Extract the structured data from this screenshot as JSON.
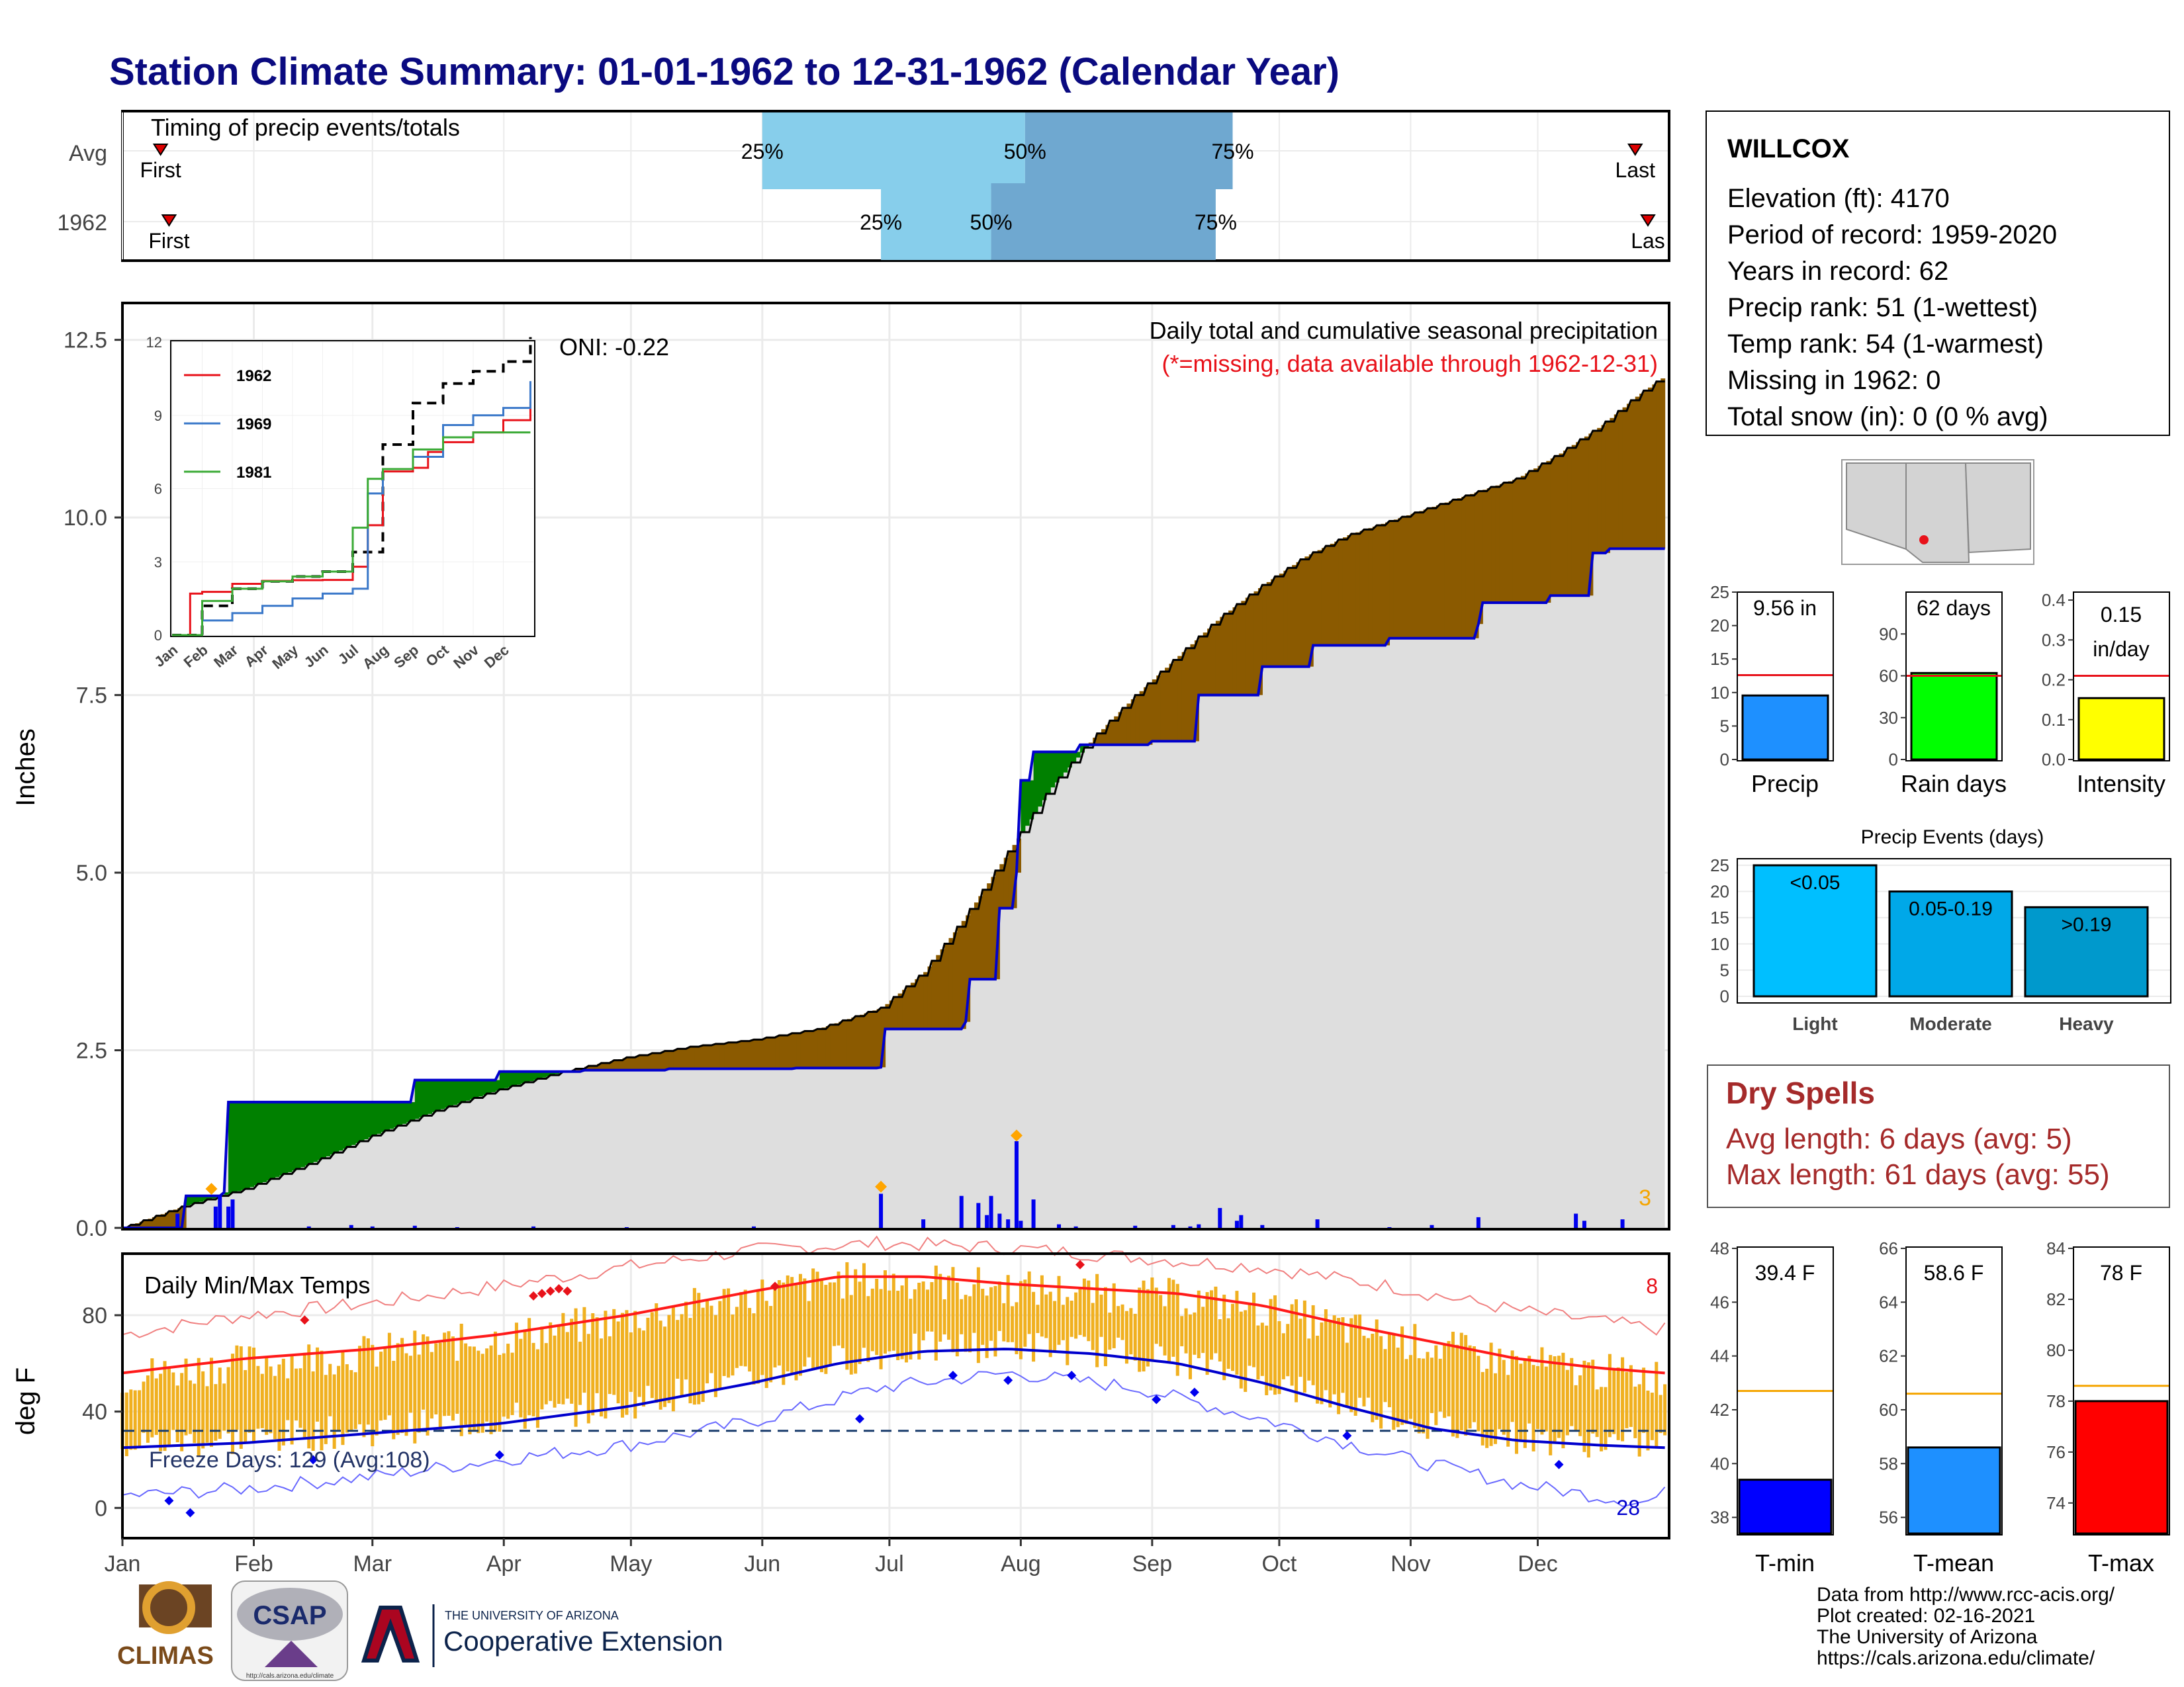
{
  "page": {
    "title": "Station Climate Summary: 01-01-1962 to 12-31-1962 (Calendar Year)"
  },
  "station": {
    "name": "WILLCOX",
    "lines": [
      "Elevation (ft): 4170",
      "Period of record: 1959-2020",
      "Years in record: 62",
      "Precip rank: 51 (1-wettest)",
      "Temp rank: 54 (1-warmest)",
      "Missing in 1962: 0",
      "Total snow (in): 0 (0 % avg)"
    ]
  },
  "timing": {
    "label": "Timing of precip events/totals",
    "rows": [
      {
        "name": "Avg",
        "first_doy": 10,
        "last_doy": 358,
        "p25_doy": 152,
        "p50_doy": 214,
        "p75_doy": 263,
        "first_label": "First",
        "last_label": "Last",
        "l25": "25%",
        "l50": "50%",
        "l75": "75%"
      },
      {
        "name": "1962",
        "first_doy": 12,
        "last_doy": 361,
        "p25_doy": 180,
        "p50_doy": 206,
        "p75_doy": 259,
        "first_label": "First",
        "last_label": "Las",
        "l25": "25%",
        "l50": "50%",
        "l75": "75%"
      }
    ]
  },
  "precip": {
    "ylabel": "Inches",
    "yticks": [
      "0.0",
      "2.5",
      "5.0",
      "7.5",
      "10.0",
      "12.5"
    ],
    "title": "Daily total and cumulative seasonal precipitation",
    "subtitle": "(*=missing, data available through 1962-12-31)",
    "oni": "ONI: -0.22",
    "count_label": "3",
    "colors": {
      "above": "#008000",
      "below": "#8b5a00",
      "area": "#dedede",
      "line": "#0000cd"
    },
    "chart_data": {
      "type": "area",
      "x_unit": "day of year",
      "ylim": [
        0,
        13
      ],
      "avg_cumulative": [
        [
          1,
          0
        ],
        [
          15,
          0.3
        ],
        [
          30,
          0.55
        ],
        [
          45,
          0.9
        ],
        [
          60,
          1.3
        ],
        [
          75,
          1.65
        ],
        [
          90,
          1.95
        ],
        [
          105,
          2.2
        ],
        [
          120,
          2.4
        ],
        [
          135,
          2.55
        ],
        [
          150,
          2.65
        ],
        [
          165,
          2.8
        ],
        [
          180,
          3.1
        ],
        [
          190,
          3.6
        ],
        [
          200,
          4.4
        ],
        [
          210,
          5.3
        ],
        [
          220,
          6.2
        ],
        [
          230,
          6.9
        ],
        [
          240,
          7.5
        ],
        [
          250,
          8.05
        ],
        [
          260,
          8.6
        ],
        [
          270,
          9.05
        ],
        [
          280,
          9.45
        ],
        [
          290,
          9.75
        ],
        [
          300,
          9.95
        ],
        [
          310,
          10.15
        ],
        [
          320,
          10.35
        ],
        [
          330,
          10.55
        ],
        [
          340,
          10.9
        ],
        [
          350,
          11.3
        ],
        [
          358,
          11.7
        ],
        [
          365,
          12.0
        ]
      ],
      "obs_cumulative": [
        [
          1,
          0
        ],
        [
          15,
          0
        ],
        [
          16,
          0.45
        ],
        [
          25,
          0.5
        ],
        [
          26,
          1.77
        ],
        [
          60,
          1.77
        ],
        [
          70,
          2.08
        ],
        [
          90,
          2.2
        ],
        [
          110,
          2.22
        ],
        [
          130,
          2.24
        ],
        [
          160,
          2.25
        ],
        [
          180,
          2.26
        ],
        [
          181,
          2.8
        ],
        [
          200,
          2.9
        ],
        [
          201,
          3.5
        ],
        [
          208,
          4.5
        ],
        [
          212,
          5.0
        ],
        [
          213,
          6.3
        ],
        [
          216,
          6.7
        ],
        [
          226,
          6.7
        ],
        [
          227,
          6.8
        ],
        [
          244,
          6.85
        ],
        [
          255,
          7.5
        ],
        [
          270,
          7.9
        ],
        [
          282,
          8.2
        ],
        [
          300,
          8.3
        ],
        [
          321,
          8.5
        ],
        [
          322,
          8.8
        ],
        [
          338,
          8.9
        ],
        [
          348,
          9.5
        ],
        [
          352,
          9.56
        ],
        [
          365,
          9.56
        ]
      ],
      "daily_bars": [
        [
          14,
          0.2
        ],
        [
          23,
          0.3
        ],
        [
          24,
          0.45
        ],
        [
          26,
          0.3
        ],
        [
          27,
          0.4
        ],
        [
          45,
          0.02
        ],
        [
          55,
          0.04
        ],
        [
          60,
          0.02
        ],
        [
          70,
          0.03
        ],
        [
          80,
          0.01
        ],
        [
          98,
          0.02
        ],
        [
          120,
          0.01
        ],
        [
          150,
          0.02
        ],
        [
          180,
          0.48
        ],
        [
          190,
          0.12
        ],
        [
          199,
          0.45
        ],
        [
          203,
          0.35
        ],
        [
          205,
          0.18
        ],
        [
          206,
          0.45
        ],
        [
          208,
          0.2
        ],
        [
          210,
          0.12
        ],
        [
          212,
          1.22
        ],
        [
          213,
          0.1
        ],
        [
          216,
          0.4
        ],
        [
          222,
          0.05
        ],
        [
          226,
          0.02
        ],
        [
          240,
          0.03
        ],
        [
          249,
          0.04
        ],
        [
          253,
          0.02
        ],
        [
          255,
          0.05
        ],
        [
          260,
          0.28
        ],
        [
          264,
          0.1
        ],
        [
          265,
          0.18
        ],
        [
          270,
          0.04
        ],
        [
          283,
          0.12
        ],
        [
          300,
          0.01
        ],
        [
          310,
          0.04
        ],
        [
          321,
          0.15
        ],
        [
          344,
          0.2
        ],
        [
          346,
          0.1
        ],
        [
          355,
          0.12
        ]
      ],
      "extreme_markers": [
        [
          22,
          0.55
        ],
        [
          180,
          0.58
        ],
        [
          212,
          1.3
        ]
      ]
    }
  },
  "inset": {
    "yticks": [
      "0",
      "3",
      "6",
      "9",
      "12"
    ],
    "months": [
      "Jan",
      "Feb",
      "Mar",
      "Apr",
      "May",
      "Jun",
      "Jul",
      "Aug",
      "Sep",
      "Oct",
      "Nov",
      "Dec"
    ],
    "legend": [
      {
        "name": "1962",
        "color": "#e8121a"
      },
      {
        "name": "1969",
        "color": "#3a78c9"
      },
      {
        "name": "1981",
        "color": "#3aaa35"
      }
    ],
    "chart_data": {
      "type": "line",
      "x_unit": "month index",
      "ylim": [
        0,
        12
      ],
      "avg": [
        [
          0,
          0
        ],
        [
          1,
          1.2
        ],
        [
          2,
          1.9
        ],
        [
          3,
          2.2
        ],
        [
          4,
          2.4
        ],
        [
          5,
          2.6
        ],
        [
          6,
          3.4
        ],
        [
          7,
          7.8
        ],
        [
          8,
          9.5
        ],
        [
          9,
          10.3
        ],
        [
          10,
          10.8
        ],
        [
          11,
          11.2
        ],
        [
          11.9,
          12.2
        ]
      ],
      "series": [
        {
          "name": "1962",
          "values": [
            [
              0,
              0
            ],
            [
              0.6,
              1.7
            ],
            [
              1.0,
              1.77
            ],
            [
              2.0,
              2.1
            ],
            [
              3.0,
              2.22
            ],
            [
              4,
              2.25
            ],
            [
              5,
              2.26
            ],
            [
              6,
              2.8
            ],
            [
              6.5,
              4.5
            ],
            [
              7,
              6.7
            ],
            [
              8,
              6.85
            ],
            [
              8.5,
              7.5
            ],
            [
              9,
              7.9
            ],
            [
              10,
              8.3
            ],
            [
              11,
              8.8
            ],
            [
              11.9,
              9.56
            ]
          ]
        },
        {
          "name": "1969",
          "values": [
            [
              0,
              0
            ],
            [
              1,
              0.6
            ],
            [
              2,
              0.9
            ],
            [
              3,
              1.2
            ],
            [
              4,
              1.5
            ],
            [
              5,
              1.7
            ],
            [
              6,
              1.9
            ],
            [
              6.5,
              5.8
            ],
            [
              7,
              6.8
            ],
            [
              8,
              7.3
            ],
            [
              9,
              8.6
            ],
            [
              10,
              9.0
            ],
            [
              11,
              9.3
            ],
            [
              11.9,
              10.4
            ]
          ]
        },
        {
          "name": "1981",
          "values": [
            [
              0,
              0
            ],
            [
              1,
              1.4
            ],
            [
              2,
              1.9
            ],
            [
              3,
              2.2
            ],
            [
              4,
              2.4
            ],
            [
              5,
              2.6
            ],
            [
              6,
              4.4
            ],
            [
              6.5,
              6.4
            ],
            [
              7,
              6.8
            ],
            [
              8,
              7.6
            ],
            [
              9,
              8.1
            ],
            [
              10,
              8.3
            ],
            [
              11,
              8.3
            ],
            [
              11.9,
              8.3
            ]
          ]
        }
      ]
    }
  },
  "bars": {
    "precip": {
      "box": "9.56 in",
      "label": "Precip",
      "yticks": [
        "0",
        "5",
        "10",
        "15",
        "20",
        "25"
      ],
      "ymax": 25,
      "value": 9.56,
      "avg": 12.6,
      "color": "#1e90ff"
    },
    "raindays": {
      "box": "62 days",
      "label": "Rain days",
      "yticks": [
        "0",
        "30",
        "60",
        "90"
      ],
      "ymax": 120,
      "value": 62,
      "avg": 60,
      "color": "#00ff00"
    },
    "intensity": {
      "box1": "0.15",
      "box2": "in/day",
      "label": "Intensity",
      "yticks": [
        "0.0",
        "0.1",
        "0.2",
        "0.3",
        "0.4"
      ],
      "ymax": 0.42,
      "value": 0.154,
      "avg": 0.21,
      "color": "#ffff00"
    }
  },
  "events": {
    "title": "Precip Events (days)",
    "yticks": [
      "0",
      "5",
      "10",
      "15",
      "20",
      "25"
    ],
    "chart_data": {
      "type": "bar",
      "categories": [
        "Light",
        "Moderate",
        "Heavy"
      ],
      "values": [
        25,
        20,
        17
      ],
      "labels": [
        "<0.05",
        "0.05-0.19",
        ">0.19"
      ],
      "colors": [
        "#00bfff",
        "#00a8e8",
        "#0099cc"
      ],
      "ylim": [
        0,
        26
      ]
    }
  },
  "dry": {
    "title": "Dry Spells",
    "line1": "Avg length: 6 days (avg: 5)",
    "line2": "Max length: 61 days (avg: 55)"
  },
  "temps": {
    "ylabel": "deg F",
    "label": "Daily Min/Max Temps",
    "yticks": [
      "0",
      "40",
      "80"
    ],
    "freeze_label": "Freeze Days: 129 (Avg:108)",
    "count_hot": "8",
    "count_cold": "28",
    "months": [
      "Jan",
      "Feb",
      "Mar",
      "Apr",
      "May",
      "Jun",
      "Jul",
      "Aug",
      "Sep",
      "Oct",
      "Nov",
      "Dec"
    ],
    "chart_data": {
      "type": "area",
      "x_unit": "day of year",
      "ylim": [
        -12,
        105
      ],
      "avg_max": [
        [
          1,
          56
        ],
        [
          30,
          62
        ],
        [
          60,
          66
        ],
        [
          90,
          72
        ],
        [
          120,
          80
        ],
        [
          150,
          90
        ],
        [
          170,
          96
        ],
        [
          190,
          96
        ],
        [
          210,
          93
        ],
        [
          230,
          91
        ],
        [
          250,
          89
        ],
        [
          270,
          84
        ],
        [
          290,
          76
        ],
        [
          310,
          69
        ],
        [
          330,
          62
        ],
        [
          350,
          58
        ],
        [
          365,
          56
        ]
      ],
      "avg_min": [
        [
          1,
          25
        ],
        [
          30,
          27
        ],
        [
          60,
          31
        ],
        [
          90,
          35
        ],
        [
          120,
          42
        ],
        [
          150,
          52
        ],
        [
          170,
          60
        ],
        [
          190,
          65
        ],
        [
          210,
          66
        ],
        [
          230,
          64
        ],
        [
          250,
          60
        ],
        [
          270,
          52
        ],
        [
          290,
          42
        ],
        [
          310,
          33
        ],
        [
          330,
          28
        ],
        [
          350,
          26
        ],
        [
          365,
          25
        ]
      ],
      "rec_max": [
        [
          1,
          72
        ],
        [
          30,
          80
        ],
        [
          60,
          85
        ],
        [
          90,
          92
        ],
        [
          120,
          100
        ],
        [
          150,
          107
        ],
        [
          180,
          110
        ],
        [
          210,
          108
        ],
        [
          240,
          104
        ],
        [
          270,
          100
        ],
        [
          300,
          92
        ],
        [
          330,
          82
        ],
        [
          365,
          74
        ]
      ],
      "rec_min": [
        [
          1,
          5
        ],
        [
          30,
          8
        ],
        [
          60,
          13
        ],
        [
          90,
          20
        ],
        [
          120,
          26
        ],
        [
          150,
          36
        ],
        [
          180,
          50
        ],
        [
          210,
          56
        ],
        [
          240,
          50
        ],
        [
          270,
          37
        ],
        [
          300,
          22
        ],
        [
          330,
          10
        ],
        [
          360,
          2
        ],
        [
          365,
          6
        ]
      ],
      "freeze": 32
    }
  },
  "tbars": {
    "tmin": {
      "box": "39.4 F",
      "label": "T-min",
      "yticks": [
        "38",
        "40",
        "42",
        "44",
        "46",
        "48"
      ],
      "ymin": 37.4,
      "ymax": 48,
      "value": 39.4,
      "avg": 42.7,
      "color": "#0000ff"
    },
    "tmean": {
      "box": "58.6 F",
      "label": "T-mean",
      "yticks": [
        "56",
        "58",
        "60",
        "62",
        "64",
        "66"
      ],
      "ymin": 55.4,
      "ymax": 66,
      "value": 58.6,
      "avg": 60.6,
      "color": "#1e90ff"
    },
    "tmax": {
      "box": "78 F",
      "label": "T-max",
      "yticks": [
        "74",
        "76",
        "78",
        "80",
        "82",
        "84"
      ],
      "ymin": 72.8,
      "ymax": 84,
      "value": 78,
      "avg": 78.6,
      "color": "#ff0000"
    }
  },
  "footer": {
    "lines": [
      "Data from http://www.rcc-acis.org/",
      "Plot created: 02-16-2021",
      "The University of Arizona",
      "https://cals.arizona.edu/climate/"
    ],
    "climas": "CLIMAS",
    "csap": "CSAP",
    "csap_url": "http://cals.arizona.edu/climate",
    "ua_small": "THE UNIVERSITY OF ARIZONA",
    "ua_big": "Cooperative Extension"
  }
}
